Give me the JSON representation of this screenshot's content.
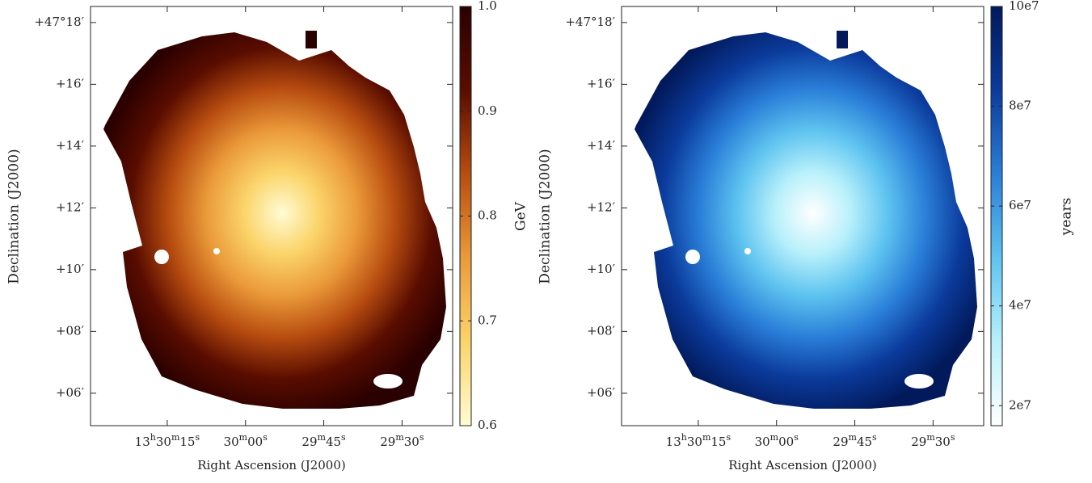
{
  "chart_data": [
    {
      "type": "image",
      "x_label": "Right Ascension (J2000)",
      "y_label": "Declination (J2000)",
      "xlim": [
        48629.7,
        48560.3
      ],
      "ylim": [
        4.95,
        18.52
      ],
      "xticks": [
        {
          "value": 48615,
          "label": "13h30m15s"
        },
        {
          "value": 48600,
          "label": "30m00s"
        },
        {
          "value": 48585,
          "label": "29m45s"
        },
        {
          "value": 48570,
          "label": "29m30s"
        }
      ],
      "yticks": [
        {
          "value": 18,
          "label": "+47°18′"
        },
        {
          "value": 16,
          "label": "+16′"
        },
        {
          "value": 14,
          "label": "+14′"
        },
        {
          "value": 12,
          "label": "+12′"
        },
        {
          "value": 10,
          "label": "+10′"
        },
        {
          "value": 8,
          "label": "+08′"
        },
        {
          "value": 6,
          "label": "+06′"
        }
      ],
      "colorbar": {
        "label": "GeV",
        "lim": [
          0.6,
          1.0
        ],
        "ticks": [
          0.6,
          0.7,
          0.8,
          0.9,
          {
            "value": 1.0,
            "label": "1.0"
          }
        ],
        "colormap": [
          "#fffcd4",
          "#fbd46a",
          "#eb9a3a",
          "#b84d10",
          "#5a0d00",
          "#2a0000"
        ]
      }
    },
    {
      "type": "image",
      "x_label": "Right Ascension (J2000)",
      "y_label": "Declination (J2000)",
      "xlim": [
        48629.7,
        48560.3
      ],
      "ylim": [
        4.95,
        18.52
      ],
      "xticks": [
        {
          "value": 48615,
          "label": "13h30m15s"
        },
        {
          "value": 48600,
          "label": "30m00s"
        },
        {
          "value": 48585,
          "label": "29m45s"
        },
        {
          "value": 48570,
          "label": "29m30s"
        }
      ],
      "yticks": [
        {
          "value": 18,
          "label": "+47°18′"
        },
        {
          "value": 16,
          "label": "+16′"
        },
        {
          "value": 14,
          "label": "+14′"
        },
        {
          "value": 12,
          "label": "+12′"
        },
        {
          "value": 10,
          "label": "+10′"
        },
        {
          "value": 8,
          "label": "+08′"
        },
        {
          "value": 6,
          "label": "+06′"
        }
      ],
      "colorbar": {
        "label": "years",
        "lim": [
          16000000,
          100000000
        ],
        "ticks": [
          {
            "value": 20000000,
            "label": "2e7"
          },
          {
            "value": 40000000,
            "label": "4e7"
          },
          {
            "value": 60000000,
            "label": "6e7"
          },
          {
            "value": 80000000,
            "label": "8e7"
          },
          {
            "value": 100000000,
            "label": "10e7"
          }
        ],
        "colormap": [
          "#ffffff",
          "#b8f0fb",
          "#5ec3f0",
          "#2a7fd8",
          "#0b3b9c",
          "#021a5c"
        ]
      }
    }
  ]
}
